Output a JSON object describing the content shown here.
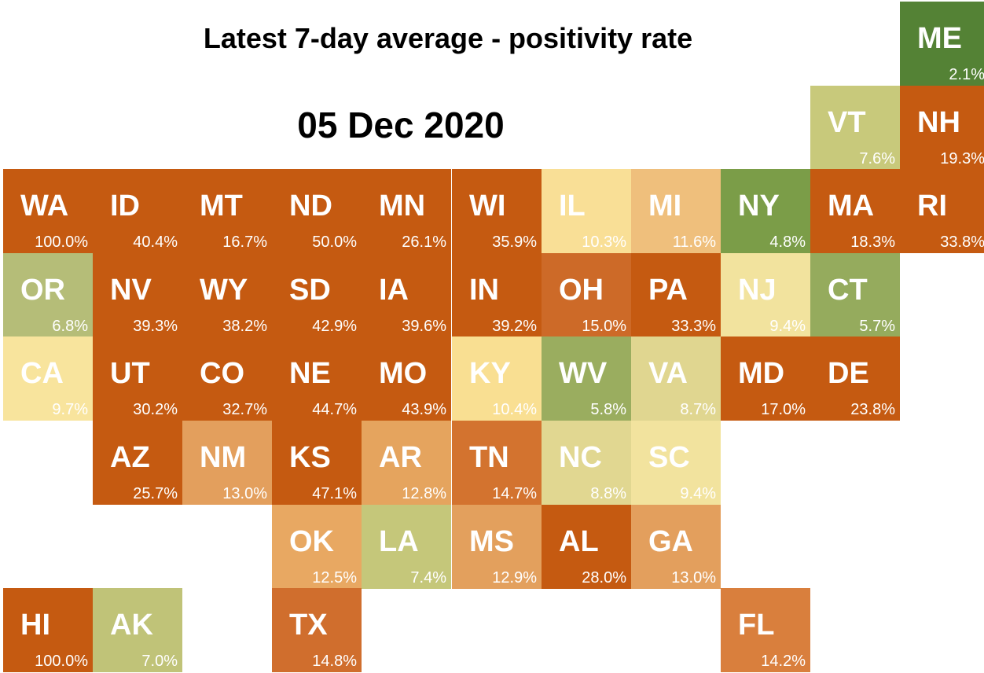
{
  "header": {
    "title": "Latest 7-day average - positivity rate",
    "date": "05 Dec 2020"
  },
  "chart_data": {
    "type": "heatmap",
    "title": "Latest 7-day average - positivity rate",
    "subtitle": "05 Dec 2020",
    "unit": "%",
    "color_scale": [
      "#548235",
      "#a9bd6a",
      "#f7df8f",
      "#e39f56",
      "#c55a11"
    ],
    "tiles": [
      {
        "state": "ME",
        "label": "2.1%",
        "value": 2.1,
        "row": 0,
        "col": 10,
        "color": "#548235"
      },
      {
        "state": "VT",
        "label": "7.6%",
        "value": 7.6,
        "row": 1,
        "col": 9,
        "color": "#c8c97b"
      },
      {
        "state": "NH",
        "label": "19.3%",
        "value": 19.3,
        "row": 1,
        "col": 10,
        "color": "#c55a11"
      },
      {
        "state": "WA",
        "label": "100.0%",
        "value": 100.0,
        "row": 2,
        "col": 0,
        "color": "#c55a11"
      },
      {
        "state": "ID",
        "label": "40.4%",
        "value": 40.4,
        "row": 2,
        "col": 1,
        "color": "#c55a11"
      },
      {
        "state": "MT",
        "label": "16.7%",
        "value": 16.7,
        "row": 2,
        "col": 2,
        "color": "#c55a11"
      },
      {
        "state": "ND",
        "label": "50.0%",
        "value": 50.0,
        "row": 2,
        "col": 3,
        "color": "#c55a11"
      },
      {
        "state": "MN",
        "label": "26.1%",
        "value": 26.1,
        "row": 2,
        "col": 4,
        "color": "#c55a11"
      },
      {
        "state": "WI",
        "label": "35.9%",
        "value": 35.9,
        "row": 2,
        "col": 5,
        "color": "#c55a11"
      },
      {
        "state": "IL",
        "label": "10.3%",
        "value": 10.3,
        "row": 2,
        "col": 6,
        "color": "#f9df96"
      },
      {
        "state": "MI",
        "label": "11.6%",
        "value": 11.6,
        "row": 2,
        "col": 7,
        "color": "#efbf7c"
      },
      {
        "state": "NY",
        "label": "4.8%",
        "value": 4.8,
        "row": 2,
        "col": 8,
        "color": "#7b9d48"
      },
      {
        "state": "MA",
        "label": "18.3%",
        "value": 18.3,
        "row": 2,
        "col": 9,
        "color": "#c55a11"
      },
      {
        "state": "RI",
        "label": "33.8%",
        "value": 33.8,
        "row": 2,
        "col": 10,
        "color": "#c55a11"
      },
      {
        "state": "OR",
        "label": "6.8%",
        "value": 6.8,
        "row": 3,
        "col": 0,
        "color": "#b5bd78"
      },
      {
        "state": "NV",
        "label": "39.3%",
        "value": 39.3,
        "row": 3,
        "col": 1,
        "color": "#c55a11"
      },
      {
        "state": "WY",
        "label": "38.2%",
        "value": 38.2,
        "row": 3,
        "col": 2,
        "color": "#c55a11"
      },
      {
        "state": "SD",
        "label": "42.9%",
        "value": 42.9,
        "row": 3,
        "col": 3,
        "color": "#c55a11"
      },
      {
        "state": "IA",
        "label": "39.6%",
        "value": 39.6,
        "row": 3,
        "col": 4,
        "color": "#c55a11"
      },
      {
        "state": "IN",
        "label": "39.2%",
        "value": 39.2,
        "row": 3,
        "col": 5,
        "color": "#c55a11"
      },
      {
        "state": "OH",
        "label": "15.0%",
        "value": 15.0,
        "row": 3,
        "col": 6,
        "color": "#cd6a28"
      },
      {
        "state": "PA",
        "label": "33.3%",
        "value": 33.3,
        "row": 3,
        "col": 7,
        "color": "#c55a11"
      },
      {
        "state": "NJ",
        "label": "9.4%",
        "value": 9.4,
        "row": 3,
        "col": 8,
        "color": "#f2e39e"
      },
      {
        "state": "CT",
        "label": "5.7%",
        "value": 5.7,
        "row": 3,
        "col": 9,
        "color": "#95ab5d"
      },
      {
        "state": "CA",
        "label": "9.7%",
        "value": 9.7,
        "row": 4,
        "col": 0,
        "color": "#f8e49d"
      },
      {
        "state": "UT",
        "label": "30.2%",
        "value": 30.2,
        "row": 4,
        "col": 1,
        "color": "#c55a11"
      },
      {
        "state": "CO",
        "label": "32.7%",
        "value": 32.7,
        "row": 4,
        "col": 2,
        "color": "#c55a11"
      },
      {
        "state": "NE",
        "label": "44.7%",
        "value": 44.7,
        "row": 4,
        "col": 3,
        "color": "#c55a11"
      },
      {
        "state": "MO",
        "label": "43.9%",
        "value": 43.9,
        "row": 4,
        "col": 4,
        "color": "#c55a11"
      },
      {
        "state": "KY",
        "label": "10.4%",
        "value": 10.4,
        "row": 4,
        "col": 5,
        "color": "#f9df92"
      },
      {
        "state": "WV",
        "label": "5.8%",
        "value": 5.8,
        "row": 4,
        "col": 6,
        "color": "#9aad5f"
      },
      {
        "state": "VA",
        "label": "8.7%",
        "value": 8.7,
        "row": 4,
        "col": 7,
        "color": "#e0d690"
      },
      {
        "state": "MD",
        "label": "17.0%",
        "value": 17.0,
        "row": 4,
        "col": 8,
        "color": "#c55a11"
      },
      {
        "state": "DE",
        "label": "23.8%",
        "value": 23.8,
        "row": 4,
        "col": 9,
        "color": "#c55a11"
      },
      {
        "state": "AZ",
        "label": "25.7%",
        "value": 25.7,
        "row": 5,
        "col": 1,
        "color": "#c55a11"
      },
      {
        "state": "NM",
        "label": "13.0%",
        "value": 13.0,
        "row": 5,
        "col": 2,
        "color": "#e39f5d"
      },
      {
        "state": "KS",
        "label": "47.1%",
        "value": 47.1,
        "row": 5,
        "col": 3,
        "color": "#c55a11"
      },
      {
        "state": "AR",
        "label": "12.8%",
        "value": 12.8,
        "row": 5,
        "col": 4,
        "color": "#e5a45e"
      },
      {
        "state": "TN",
        "label": "14.7%",
        "value": 14.7,
        "row": 5,
        "col": 5,
        "color": "#d3732f"
      },
      {
        "state": "NC",
        "label": "8.8%",
        "value": 8.8,
        "row": 5,
        "col": 6,
        "color": "#e1d791"
      },
      {
        "state": "SC",
        "label": "9.4%",
        "value": 9.4,
        "row": 5,
        "col": 7,
        "color": "#f2e39e"
      },
      {
        "state": "OK",
        "label": "12.5%",
        "value": 12.5,
        "row": 6,
        "col": 3,
        "color": "#e8a862"
      },
      {
        "state": "LA",
        "label": "7.4%",
        "value": 7.4,
        "row": 6,
        "col": 4,
        "color": "#c5c77a"
      },
      {
        "state": "MS",
        "label": "12.9%",
        "value": 12.9,
        "row": 6,
        "col": 5,
        "color": "#e3a05d"
      },
      {
        "state": "AL",
        "label": "28.0%",
        "value": 28.0,
        "row": 6,
        "col": 6,
        "color": "#c55a11"
      },
      {
        "state": "GA",
        "label": "13.0%",
        "value": 13.0,
        "row": 6,
        "col": 7,
        "color": "#e39f5d"
      },
      {
        "state": "HI",
        "label": "100.0%",
        "value": 100.0,
        "row": 7,
        "col": 0,
        "color": "#c55a11"
      },
      {
        "state": "AK",
        "label": "7.0%",
        "value": 7.0,
        "row": 7,
        "col": 1,
        "color": "#c0c378"
      },
      {
        "state": "TX",
        "label": "14.8%",
        "value": 14.8,
        "row": 7,
        "col": 3,
        "color": "#d06e2d"
      },
      {
        "state": "FL",
        "label": "14.2%",
        "value": 14.2,
        "row": 7,
        "col": 8,
        "color": "#d97f3d"
      }
    ]
  }
}
